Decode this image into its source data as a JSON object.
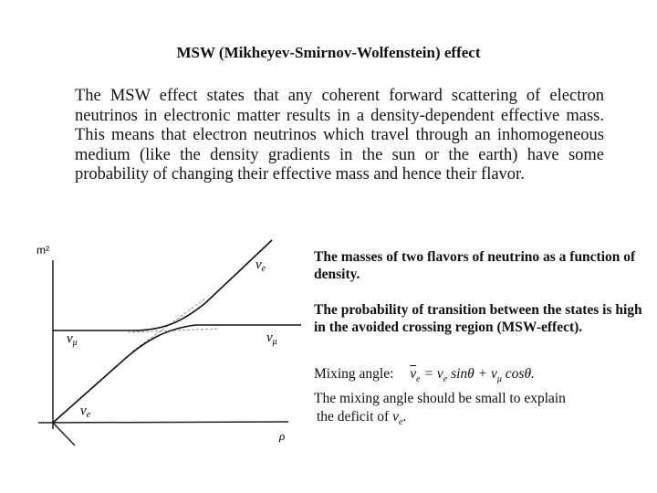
{
  "slide": {
    "title": "MSW (Mikheyev-Smirnov-Wolfenstein) effect",
    "intro": "The MSW effect states that any coherent forward scattering of electron neutrinos in electronic matter results in a density-dependent effective mass. This means that electron neutrinos which travel through an inhomogeneous medium (like the density gradients in the sun or the earth) have some probability of changing their effective mass and hence their flavor."
  },
  "diagram": {
    "y_axis_label": "m²",
    "x_axis_label": "ρ",
    "curve_labels": {
      "nu_e_upper": "ν",
      "nu_e_upper_sub": "e",
      "nu_mu_left": "ν",
      "nu_mu_left_sub": "μ",
      "nu_mu_right": "ν",
      "nu_mu_right_sub": "μ",
      "nu_e_lower": "ν",
      "nu_e_lower_sub": "e"
    }
  },
  "captions": {
    "masses": "The masses of two flavors of neutrino as a function of density.",
    "probability": "The probability of transition between the states is high in the avoided crossing region (MSW-effect).",
    "mixing_label": "Mixing angle:",
    "eq": {
      "lhs_nu": "ν",
      "lhs_sub": "e",
      "eq_sign": " = ",
      "nu1": "ν",
      "sub1": "e",
      "term1": " sinθ + ",
      "nu2": "ν",
      "sub2": "μ",
      "term2": " cosθ."
    },
    "explain": "The mixing angle should be small to explain",
    "deficit": "the deficit of",
    "deficit_nu": "ν",
    "deficit_sub": "e",
    "deficit_end": "."
  }
}
